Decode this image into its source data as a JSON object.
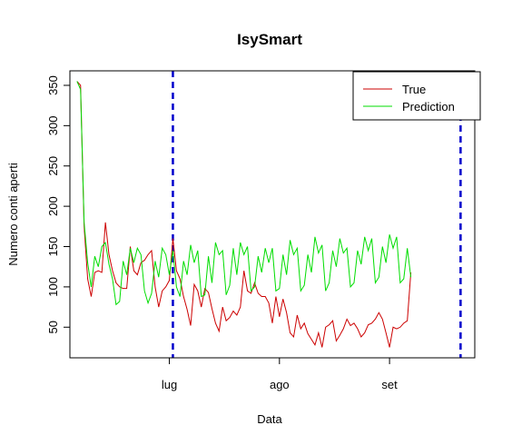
{
  "chart_data": {
    "type": "line",
    "title": "IsySmart",
    "xlabel": "Data",
    "ylabel": "Numero conti aperti",
    "x_start": "2017-06-05",
    "xlim": [
      "2017-06-03",
      "2017-09-25"
    ],
    "ylim": [
      12,
      368
    ],
    "y_ticks": [
      50,
      100,
      150,
      200,
      250,
      300,
      350
    ],
    "x_ticks": [
      {
        "date": "2017-07-01",
        "label": "lug"
      },
      {
        "date": "2017-08-01",
        "label": "ago"
      },
      {
        "date": "2017-09-01",
        "label": "set"
      }
    ],
    "vertical_lines": [
      {
        "date": "2017-07-02",
        "color": "#0000cc",
        "style": "dashed"
      },
      {
        "date": "2017-09-21",
        "color": "#0000cc",
        "style": "dashed"
      }
    ],
    "legend": {
      "position": "top-right"
    },
    "series": [
      {
        "name": "True",
        "color": "#cc0000",
        "values": [
          355,
          350,
          175,
          110,
          88,
          118,
          120,
          118,
          180,
          140,
          120,
          105,
          100,
          98,
          98,
          150,
          120,
          115,
          130,
          133,
          140,
          145,
          100,
          75,
          95,
          100,
          108,
          160,
          120,
          110,
          88,
          72,
          52,
          103,
          95,
          75,
          98,
          93,
          73,
          55,
          45,
          75,
          58,
          62,
          70,
          65,
          75,
          120,
          95,
          92,
          105,
          92,
          88,
          88,
          80,
          55,
          88,
          63,
          85,
          68,
          43,
          38,
          65,
          48,
          55,
          42,
          35,
          28,
          43,
          25,
          50,
          53,
          58,
          33,
          40,
          48,
          60,
          52,
          55,
          48,
          38,
          43,
          53,
          55,
          60,
          68,
          60,
          43,
          25,
          50,
          48,
          50,
          55,
          58,
          118
        ]
      },
      {
        "name": "Prediction",
        "color": "#00dd00",
        "values": [
          355,
          345,
          180,
          130,
          100,
          138,
          125,
          150,
          155,
          128,
          110,
          78,
          82,
          132,
          115,
          148,
          130,
          148,
          140,
          95,
          80,
          92,
          132,
          112,
          148,
          140,
          115,
          145,
          100,
          88,
          132,
          115,
          152,
          130,
          145,
          88,
          90,
          138,
          105,
          155,
          140,
          145,
          90,
          102,
          148,
          115,
          155,
          140,
          150,
          95,
          100,
          138,
          118,
          148,
          130,
          148,
          95,
          98,
          140,
          115,
          158,
          140,
          148,
          95,
          102,
          140,
          118,
          162,
          142,
          152,
          95,
          105,
          145,
          125,
          160,
          142,
          148,
          100,
          105,
          145,
          128,
          162,
          145,
          160,
          105,
          112,
          150,
          130,
          165,
          148,
          162,
          105,
          110,
          148,
          112
        ]
      }
    ]
  }
}
